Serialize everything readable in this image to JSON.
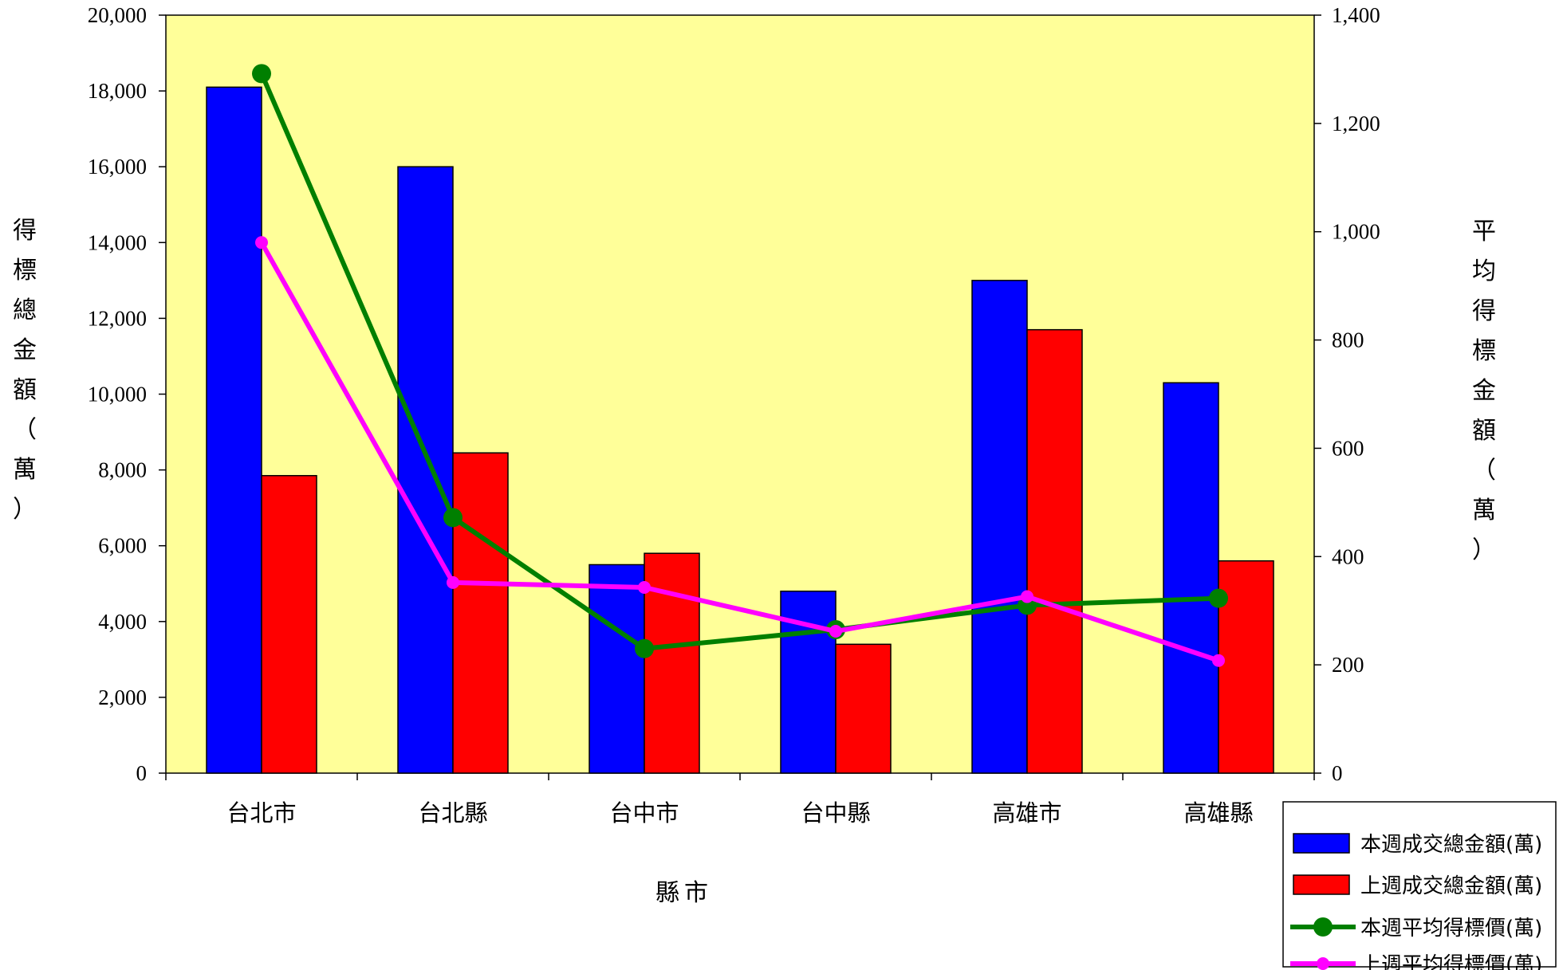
{
  "chart_data": {
    "type": "bar",
    "categories": [
      "台北市",
      "台北縣",
      "台中市",
      "台中縣",
      "高雄市",
      "高雄縣"
    ],
    "series": [
      {
        "name": "本週成交總金額(萬)",
        "kind": "bar",
        "axis": "left",
        "color": "#0000FF",
        "values": [
          18100,
          16000,
          5500,
          4800,
          13000,
          10300
        ]
      },
      {
        "name": "上週成交總金額(萬)",
        "kind": "bar",
        "axis": "left",
        "color": "#FF0000",
        "values": [
          7850,
          8450,
          5800,
          3400,
          11700,
          5600
        ]
      },
      {
        "name": "本週平均得標價(萬)",
        "kind": "line",
        "axis": "right",
        "color": "#007F00",
        "values": [
          1292,
          472,
          230,
          265,
          310,
          323
        ]
      },
      {
        "name": "上週平均得標價(萬)",
        "kind": "line",
        "axis": "right",
        "color": "#FF00FF",
        "values": [
          980,
          352,
          343,
          262,
          326,
          208
        ]
      }
    ],
    "xlabel": "縣市",
    "ylabel": "得標總金額（萬）",
    "y2label": "平均得標金額（萬）",
    "ylim": [
      0,
      20000
    ],
    "y2lim": [
      0,
      1400
    ],
    "yticks": [
      "0",
      "2,000",
      "4,000",
      "6,000",
      "8,000",
      "10,000",
      "12,000",
      "14,000",
      "16,000",
      "18,000",
      "20,000"
    ],
    "y2ticks": [
      "0",
      "200",
      "400",
      "600",
      "800",
      "1,000",
      "1,200",
      "1,400"
    ],
    "plot_background": "#FFFF99",
    "grid": false,
    "legend_position": "bottom-right"
  }
}
